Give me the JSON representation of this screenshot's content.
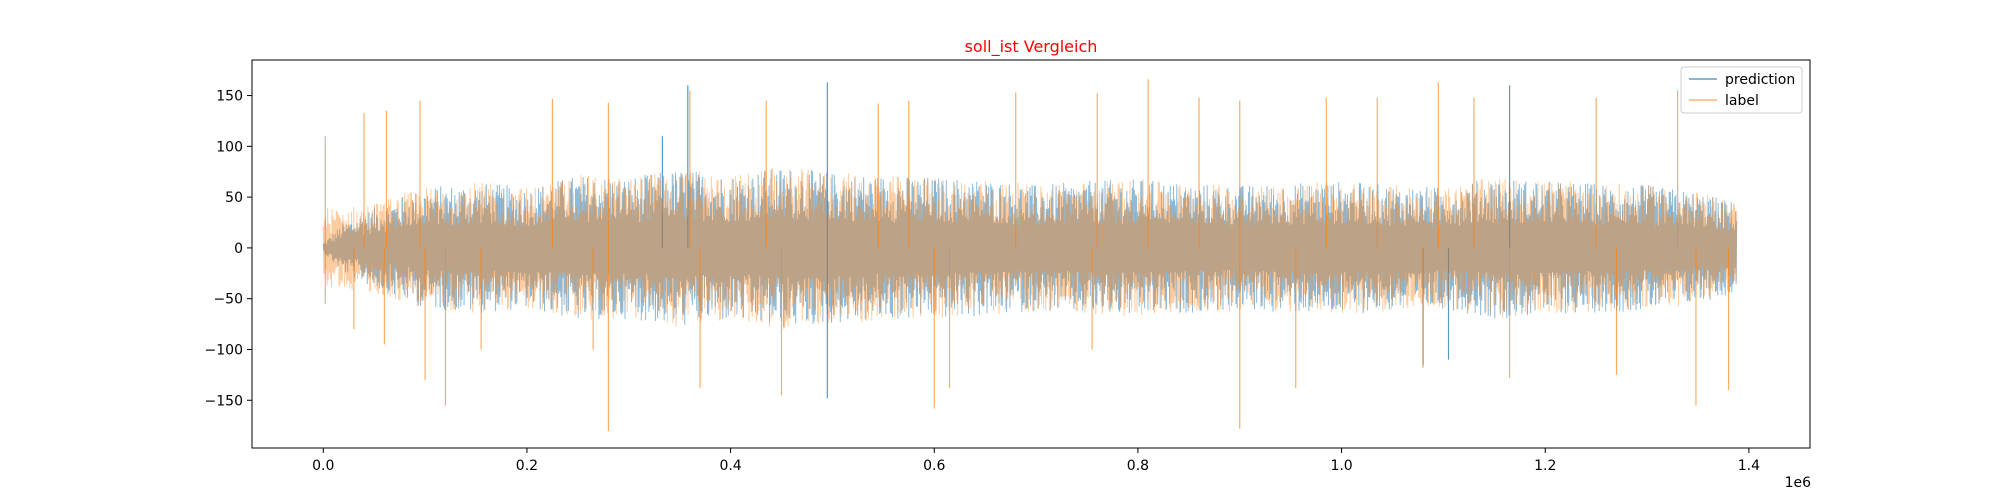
{
  "chart_data": {
    "type": "line",
    "title": "soll_ist Vergleich",
    "title_color": "#ff0000",
    "xlabel": "",
    "ylabel": "",
    "x_offset_label": "1e6",
    "xlim": [
      -70000,
      1460000
    ],
    "ylim": [
      -197,
      185
    ],
    "x_ticks": [
      0.0,
      0.2,
      0.4,
      0.6,
      0.8,
      1.0,
      1.2,
      1.4
    ],
    "x_tick_labels": [
      "0.0",
      "0.2",
      "0.4",
      "0.6",
      "0.8",
      "1.0",
      "1.2",
      "1.4"
    ],
    "y_ticks": [
      150,
      100,
      50,
      0,
      -50,
      -100,
      -150
    ],
    "y_tick_labels": [
      "150",
      "100",
      "50",
      "0",
      "−50",
      "−100",
      "−150"
    ],
    "grid": false,
    "legend_position": "upper right",
    "series": [
      {
        "name": "prediction",
        "color": "#1f77b4",
        "opacity": 0.5,
        "x_range": [
          0,
          1388000
        ],
        "envelope": {
          "x": [
            0,
            20000,
            50000,
            100000,
            150000,
            200000,
            250000,
            300000,
            350000,
            400000,
            450000,
            500000,
            550000,
            600000,
            650000,
            700000,
            750000,
            800000,
            850000,
            900000,
            950000,
            1000000,
            1050000,
            1100000,
            1150000,
            1200000,
            1250000,
            1300000,
            1350000,
            1388000
          ],
          "max": [
            5,
            25,
            40,
            60,
            65,
            60,
            72,
            70,
            78,
            72,
            80,
            75,
            72,
            70,
            68,
            62,
            66,
            68,
            64,
            62,
            64,
            66,
            62,
            60,
            70,
            66,
            64,
            62,
            55,
            45
          ],
          "min": [
            -5,
            -25,
            -40,
            -60,
            -65,
            -60,
            -72,
            -70,
            -78,
            -72,
            -80,
            -75,
            -72,
            -70,
            -68,
            -62,
            -66,
            -68,
            -64,
            -62,
            -64,
            -66,
            -62,
            -60,
            -70,
            -66,
            -64,
            -62,
            -55,
            -45
          ]
        },
        "spikes": [
          {
            "x": 333000,
            "y": 110
          },
          {
            "x": 358000,
            "y": 160
          },
          {
            "x": 495000,
            "y": 163
          },
          {
            "x": 1165000,
            "y": 160
          },
          {
            "x": 495000,
            "y": -148
          },
          {
            "x": 1080000,
            "y": -115
          },
          {
            "x": 1105000,
            "y": -110
          }
        ]
      },
      {
        "name": "label",
        "color": "#ff7f0e",
        "opacity": 0.4,
        "x_range": [
          0,
          1388000
        ],
        "envelope": {
          "x": [
            0,
            20000,
            50000,
            100000,
            150000,
            200000,
            250000,
            300000,
            350000,
            400000,
            450000,
            500000,
            550000,
            600000,
            650000,
            700000,
            750000,
            800000,
            850000,
            900000,
            950000,
            1000000,
            1050000,
            1100000,
            1150000,
            1200000,
            1250000,
            1300000,
            1350000,
            1388000
          ],
          "max": [
            40,
            40,
            45,
            60,
            65,
            60,
            72,
            70,
            78,
            72,
            80,
            75,
            72,
            70,
            68,
            62,
            66,
            68,
            64,
            62,
            64,
            66,
            62,
            60,
            70,
            66,
            64,
            62,
            55,
            45
          ],
          "min": [
            -40,
            -40,
            -45,
            -60,
            -65,
            -60,
            -72,
            -70,
            -78,
            -72,
            -80,
            -75,
            -72,
            -70,
            -68,
            -62,
            -66,
            -68,
            -64,
            -62,
            -64,
            -66,
            -62,
            -60,
            -70,
            -66,
            -64,
            -62,
            -55,
            -45
          ]
        },
        "spikes": [
          {
            "x": 2000,
            "y": 110
          },
          {
            "x": 40000,
            "y": 133
          },
          {
            "x": 62000,
            "y": 135
          },
          {
            "x": 95000,
            "y": 145
          },
          {
            "x": 225000,
            "y": 147
          },
          {
            "x": 280000,
            "y": 143
          },
          {
            "x": 360000,
            "y": 155
          },
          {
            "x": 435000,
            "y": 145
          },
          {
            "x": 545000,
            "y": 142
          },
          {
            "x": 575000,
            "y": 145
          },
          {
            "x": 680000,
            "y": 153
          },
          {
            "x": 760000,
            "y": 152
          },
          {
            "x": 810000,
            "y": 166
          },
          {
            "x": 860000,
            "y": 148
          },
          {
            "x": 900000,
            "y": 145
          },
          {
            "x": 985000,
            "y": 148
          },
          {
            "x": 1035000,
            "y": 148
          },
          {
            "x": 1095000,
            "y": 163
          },
          {
            "x": 1130000,
            "y": 148
          },
          {
            "x": 1250000,
            "y": 148
          },
          {
            "x": 1330000,
            "y": 155
          },
          {
            "x": 2000,
            "y": -55
          },
          {
            "x": 30000,
            "y": -80
          },
          {
            "x": 60000,
            "y": -95
          },
          {
            "x": 100000,
            "y": -130
          },
          {
            "x": 120000,
            "y": -155
          },
          {
            "x": 155000,
            "y": -100
          },
          {
            "x": 265000,
            "y": -100
          },
          {
            "x": 280000,
            "y": -180
          },
          {
            "x": 370000,
            "y": -138
          },
          {
            "x": 450000,
            "y": -145
          },
          {
            "x": 600000,
            "y": -158
          },
          {
            "x": 615000,
            "y": -138
          },
          {
            "x": 755000,
            "y": -100
          },
          {
            "x": 900000,
            "y": -178
          },
          {
            "x": 955000,
            "y": -138
          },
          {
            "x": 1080000,
            "y": -118
          },
          {
            "x": 1165000,
            "y": -128
          },
          {
            "x": 1270000,
            "y": -125
          },
          {
            "x": 1348000,
            "y": -155
          },
          {
            "x": 1380000,
            "y": -140
          }
        ]
      }
    ]
  }
}
